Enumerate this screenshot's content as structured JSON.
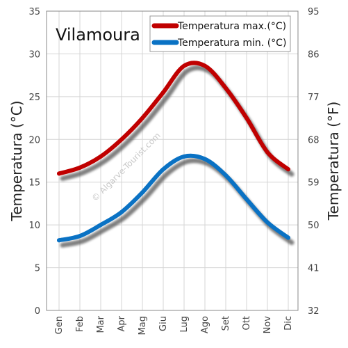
{
  "chart_data": {
    "type": "line",
    "title": "Vilamoura",
    "watermark": "© Algarve-Tourist.com",
    "categories": [
      "Gen",
      "Feb",
      "Mar",
      "Apr",
      "Mag",
      "Giu",
      "Lug",
      "Ago",
      "Set",
      "Ott",
      "Nov",
      "Dic"
    ],
    "ylabel_left": "Temperatura (°C)",
    "ylabel_right": "Temperatura (°F)",
    "ylim": [
      0,
      35
    ],
    "yticks_left": [
      0,
      5,
      10,
      15,
      20,
      25,
      30,
      35
    ],
    "yticks_right": [
      "32",
      "41",
      "50",
      "59",
      "68",
      "77",
      "86",
      "95"
    ],
    "grid": true,
    "legend_position": "top-right",
    "series": [
      {
        "name": "Temperatura max.(°C)",
        "color": "#c00000",
        "values": [
          16,
          16.7,
          18,
          20,
          22.5,
          25.5,
          28.6,
          28.6,
          26,
          22.5,
          18.5,
          16.5
        ]
      },
      {
        "name": "Temperatura min.  (°C)",
        "color": "#0a72c4",
        "values": [
          8.2,
          8.7,
          10,
          11.5,
          13.8,
          16.5,
          18,
          17.7,
          15.8,
          13,
          10.3,
          8.5
        ]
      }
    ]
  }
}
